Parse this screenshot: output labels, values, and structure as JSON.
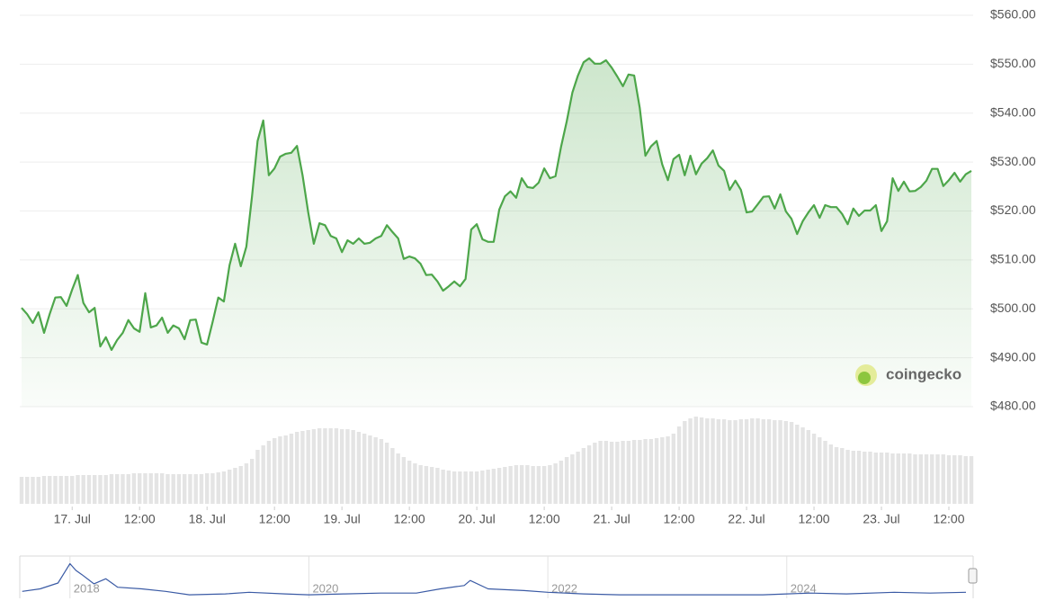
{
  "chart_data": [
    {
      "type": "line",
      "x": [
        -9,
        -8,
        -7,
        -6,
        -5,
        -4,
        -3,
        -2,
        -1,
        0,
        1,
        2,
        3,
        4,
        5,
        6,
        7,
        8,
        9,
        10,
        11,
        12,
        13,
        14,
        15,
        16,
        17,
        18,
        19,
        20,
        21,
        22,
        23,
        24,
        25,
        26,
        27,
        28,
        29,
        30,
        31,
        32,
        33,
        34,
        35,
        36,
        37,
        38,
        39,
        40,
        41,
        42,
        43,
        44,
        45,
        46,
        47,
        48,
        49,
        50,
        51,
        52,
        53,
        54,
        55,
        56,
        57,
        58,
        59,
        60,
        61,
        62,
        63,
        64,
        65,
        66,
        67,
        68,
        69,
        70,
        71,
        72,
        73,
        74,
        75,
        76,
        77,
        78,
        79,
        80,
        81,
        82,
        83,
        84,
        85,
        86,
        87,
        88,
        89,
        90,
        91,
        92,
        93,
        94,
        95,
        96,
        97,
        98,
        99,
        100,
        101,
        102,
        103,
        104,
        105,
        106,
        107,
        108,
        109,
        110,
        111,
        112,
        113,
        114,
        115,
        116,
        117,
        118,
        119,
        120,
        121,
        122,
        123,
        124,
        125,
        126,
        127,
        128,
        129,
        130,
        131,
        132,
        133,
        134,
        135,
        136,
        137,
        138,
        139,
        140,
        141,
        142,
        143,
        144,
        145,
        146,
        147,
        148,
        149,
        150,
        151,
        152,
        153,
        154,
        155,
        156,
        157,
        158,
        159,
        160
      ],
      "series": [
        {
          "color": "#4da64a",
          "values": [
            500.2,
            498.9,
            497.1,
            499.3,
            495.1,
            498.9,
            502.3,
            502.4,
            500.6,
            503.9,
            506.9,
            501.2,
            499.3,
            500.2,
            492.3,
            494.2,
            491.6,
            493.6,
            495.1,
            497.7,
            496.0,
            495.3,
            503.2,
            496.2,
            496.6,
            498.2,
            495.1,
            496.6,
            496.0,
            493.8,
            497.7,
            497.8,
            493.1,
            492.7,
            497.3,
            502.3,
            501.5,
            508.9,
            513.3,
            508.7,
            512.7,
            523.0,
            534.3,
            538.5,
            527.3,
            528.7,
            531.1,
            531.7,
            531.9,
            533.3,
            527.3,
            519.7,
            513.3,
            517.5,
            517.1,
            514.9,
            514.4,
            511.6,
            514.0,
            513.3,
            514.4,
            513.3,
            513.5,
            514.4,
            514.9,
            517.1,
            515.7,
            514.4,
            510.2,
            510.7,
            510.3,
            509.2,
            506.9,
            507.0,
            505.6,
            503.7,
            504.6,
            505.6,
            504.6,
            506.1,
            516.2,
            517.3,
            514.2,
            513.7,
            513.7,
            520.3,
            523.0,
            524.0,
            522.7,
            526.7,
            524.9,
            524.7,
            525.8,
            528.7,
            526.7,
            527.1,
            533.2,
            538.3,
            544.2,
            547.7,
            550.4,
            551.2,
            550.1,
            550.1,
            550.8,
            549.3,
            547.5,
            545.5,
            547.9,
            547.7,
            541.1,
            531.3,
            533.2,
            534.3,
            529.5,
            526.3,
            530.6,
            531.5,
            527.3,
            531.3,
            527.5,
            529.7,
            530.8,
            532.4,
            529.3,
            528.2,
            524.3,
            526.2,
            524.3,
            519.7,
            519.9,
            521.4,
            522.9,
            523.0,
            520.5,
            523.4,
            519.9,
            518.4,
            515.3,
            517.9,
            519.7,
            521.2,
            518.6,
            521.2,
            520.8,
            520.8,
            519.4,
            517.3,
            520.5,
            519.0,
            520.1,
            520.1,
            521.2,
            515.9,
            517.9,
            526.7,
            524.1,
            526.0,
            524.0,
            524.1,
            524.9,
            526.2,
            528.6,
            528.6,
            525.1,
            526.3,
            527.8,
            526.0,
            527.5,
            528.2
          ]
        },
        {
          "type": "bar",
          "axis": "y2",
          "color": "#e4e4e4",
          "values": [
            30,
            30,
            30,
            30,
            31,
            31,
            31,
            31,
            31,
            31,
            32,
            32,
            32,
            32,
            32,
            32,
            33,
            33,
            33,
            33,
            34,
            34,
            34,
            34,
            34,
            34,
            33,
            33,
            33,
            33,
            33,
            33,
            33,
            34,
            34,
            35,
            36,
            38,
            40,
            42,
            45,
            50,
            60,
            65,
            70,
            73,
            75,
            76,
            78,
            80,
            81,
            82,
            83,
            84,
            84,
            84,
            84,
            83,
            83,
            82,
            80,
            78,
            76,
            74,
            72,
            68,
            62,
            56,
            52,
            48,
            45,
            43,
            42,
            41,
            40,
            38,
            37,
            36,
            36,
            36,
            36,
            36,
            37,
            38,
            39,
            40,
            41,
            42,
            43,
            43,
            43,
            42,
            42,
            42,
            43,
            45,
            48,
            52,
            55,
            58,
            62,
            65,
            68,
            70,
            70,
            69,
            69,
            70,
            70,
            71,
            71,
            72,
            72,
            73,
            74,
            75,
            78,
            86,
            92,
            95,
            97,
            96,
            95,
            95,
            94,
            94,
            93,
            93,
            94,
            94,
            95,
            95,
            94,
            94,
            93,
            93,
            92,
            91,
            88,
            85,
            82,
            78,
            74,
            70,
            66,
            63,
            62,
            60,
            59,
            59,
            58,
            58,
            57,
            57,
            57,
            56,
            56,
            56,
            56,
            55,
            55,
            55,
            55,
            55,
            55,
            54,
            54,
            54,
            53,
            53
          ]
        }
      ],
      "xlim": [
        -9,
        160
      ],
      "xticks": [
        {
          "value": 0,
          "label": "17. Jul"
        },
        {
          "value": 12,
          "label": "12:00"
        },
        {
          "value": 24,
          "label": "18. Jul"
        },
        {
          "value": 36,
          "label": "12:00"
        },
        {
          "value": 48,
          "label": "19. Jul"
        },
        {
          "value": 60,
          "label": "12:00"
        },
        {
          "value": 72,
          "label": "20. Jul"
        },
        {
          "value": 84,
          "label": "12:00"
        },
        {
          "value": 96,
          "label": "21. Jul"
        },
        {
          "value": 108,
          "label": "12:00"
        },
        {
          "value": 120,
          "label": "22. Jul"
        },
        {
          "value": 132,
          "label": "12:00"
        },
        {
          "value": 144,
          "label": "23. Jul"
        },
        {
          "value": 156,
          "label": "12:00"
        }
      ],
      "ylim": [
        480,
        560
      ],
      "yticks": [
        {
          "value": 480,
          "label": "$480.00"
        },
        {
          "value": 490,
          "label": "$490.00"
        },
        {
          "value": 500,
          "label": "$500.00"
        },
        {
          "value": 510,
          "label": "$510.00"
        },
        {
          "value": 520,
          "label": "$520.00"
        },
        {
          "value": 530,
          "label": "$530.00"
        },
        {
          "value": 540,
          "label": "$540.00"
        },
        {
          "value": 550,
          "label": "$550.00"
        },
        {
          "value": 560,
          "label": "$560.00"
        }
      ],
      "y2lim": [
        0,
        110
      ],
      "grid": true,
      "watermark": "coingecko"
    },
    {
      "type": "line",
      "x": [
        2017.6,
        2017.75,
        2017.9,
        2018.0,
        2018.05,
        2018.1,
        2018.2,
        2018.3,
        2018.4,
        2018.6,
        2018.8,
        2019.0,
        2019.3,
        2019.5,
        2019.8,
        2020.0,
        2020.3,
        2020.6,
        2020.9,
        2021.1,
        2021.3,
        2021.35,
        2021.5,
        2021.8,
        2022.0,
        2022.3,
        2022.6,
        2023.0,
        2023.4,
        2023.8,
        2024.0,
        2024.2,
        2024.5,
        2024.9,
        2025.2,
        2025.5
      ],
      "values": [
        5,
        8,
        15,
        38,
        30,
        25,
        14,
        20,
        10,
        8,
        5,
        1,
        2,
        4,
        2,
        1,
        2,
        3,
        3,
        8,
        12,
        18,
        8,
        6,
        4,
        2,
        1,
        1,
        1,
        1,
        2,
        3,
        2,
        4,
        3,
        4
      ],
      "color": "#3b5ba5",
      "xlim": [
        2017.58,
        2025.56
      ],
      "ylim": [
        0,
        45
      ],
      "xticks": [
        2018,
        2020,
        2022,
        2024
      ]
    }
  ]
}
